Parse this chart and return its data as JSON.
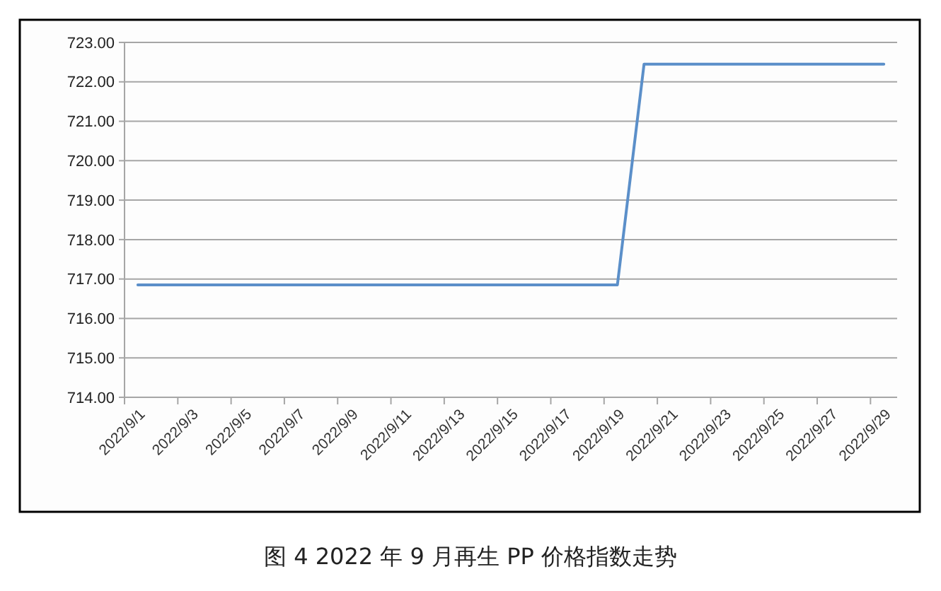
{
  "chart_data": {
    "type": "line",
    "title": "图 4  2022 年 9 月再生 PP 价格指数走势",
    "categories": [
      "2022/9/1",
      null,
      "2022/9/3",
      null,
      "2022/9/5",
      null,
      "2022/9/7",
      null,
      "2022/9/9",
      null,
      "2022/9/11",
      null,
      "2022/9/13",
      null,
      "2022/9/15",
      null,
      "2022/9/17",
      null,
      "2022/9/19",
      null,
      "2022/9/21",
      null,
      "2022/9/23",
      null,
      "2022/9/25",
      null,
      "2022/9/27",
      null,
      "2022/9/29"
    ],
    "series": [
      {
        "color": "#5b8fc9",
        "values": [
          716.85,
          716.85,
          716.85,
          716.85,
          716.85,
          716.85,
          716.85,
          716.85,
          716.85,
          716.85,
          716.85,
          716.85,
          716.85,
          716.85,
          716.85,
          716.85,
          716.85,
          716.85,
          716.85,
          722.45,
          722.45,
          722.45,
          722.45,
          722.45,
          722.45,
          722.45,
          722.45,
          722.45,
          722.45
        ]
      }
    ],
    "ylim": [
      714,
      723
    ],
    "yticks": [
      {
        "value": 714,
        "label": "714.00"
      },
      {
        "value": 715,
        "label": "715.00"
      },
      {
        "value": 716,
        "label": "716.00"
      },
      {
        "value": 717,
        "label": "717.00"
      },
      {
        "value": 718,
        "label": "718.00"
      },
      {
        "value": 719,
        "label": "719.00"
      },
      {
        "value": 720,
        "label": "720.00"
      },
      {
        "value": 721,
        "label": "721.00"
      },
      {
        "value": 722,
        "label": "722.00"
      },
      {
        "value": 723,
        "label": "723.00"
      }
    ],
    "grid": "y",
    "marker": "none",
    "line_style": "solid"
  }
}
